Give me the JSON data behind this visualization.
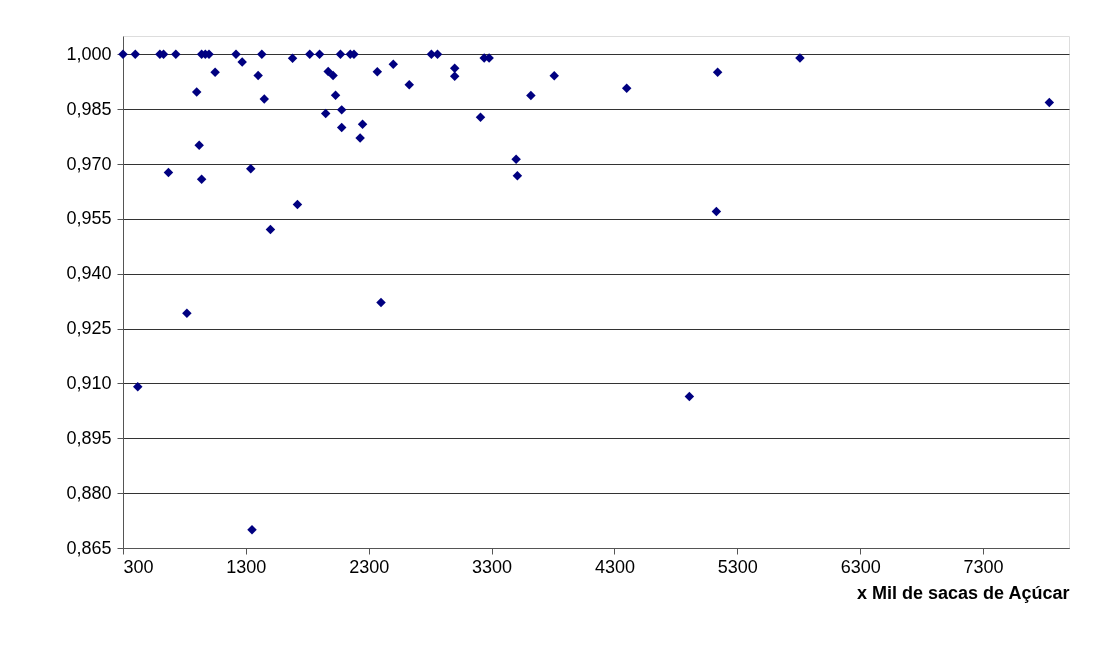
{
  "chart_data": {
    "type": "scatter",
    "xlabel": "x Mil de sacas de Açúcar",
    "marker": "diamond",
    "grid": "y",
    "xlim": [
      300,
      8000
    ],
    "xticks": [
      300,
      1300,
      2300,
      3300,
      4300,
      5300,
      6300,
      7300
    ],
    "ylim": [
      0.865,
      1.005
    ],
    "yticks": [
      {
        "value": 0.865,
        "label": "0,865"
      },
      {
        "value": 0.88,
        "label": "0,880"
      },
      {
        "value": 0.895,
        "label": "0,895"
      },
      {
        "value": 0.91,
        "label": "0,910"
      },
      {
        "value": 0.925,
        "label": "0,925"
      },
      {
        "value": 0.94,
        "label": "0,940"
      },
      {
        "value": 0.955,
        "label": "0,955"
      },
      {
        "value": 0.97,
        "label": "0,970"
      },
      {
        "value": 0.985,
        "label": "0,985"
      },
      {
        "value": 1.0,
        "label": "1,000"
      }
    ],
    "series": [
      {
        "color": "#000080",
        "x": [
          300,
          400,
          600,
          630,
          730,
          940,
          970,
          1000,
          900,
          1050,
          920,
          670,
          940,
          1220,
          1270,
          1430,
          1400,
          1450,
          1340,
          1720,
          1500,
          1680,
          1820,
          1900,
          1970,
          2010,
          2030,
          1950,
          2080,
          2080,
          2250,
          2230,
          2070,
          2150,
          2180,
          2370,
          2500,
          2630,
          2810,
          2860,
          3000,
          3000,
          3240,
          3280,
          3210,
          3620,
          3810,
          3500,
          3510,
          4400,
          5140,
          5130,
          5810,
          7840,
          420,
          820,
          2400,
          1350,
          4910
        ],
        "values": [
          1.0,
          1.0,
          1.0,
          1.0,
          1.0,
          1.0,
          1.0,
          1.0,
          0.9897,
          0.9951,
          0.9751,
          0.9677,
          0.9658,
          1.0,
          0.9979,
          1.0,
          0.9942,
          0.9878,
          0.9687,
          0.9589,
          0.9521,
          0.9989,
          1.0,
          1.0,
          0.9953,
          0.9942,
          0.9888,
          0.9838,
          0.9848,
          0.98,
          0.9809,
          0.9771,
          1.0,
          1.0,
          1.0,
          0.9952,
          0.9973,
          0.9917,
          1.0,
          1.0,
          0.9962,
          0.994,
          0.999,
          0.999,
          0.9828,
          0.9887,
          0.9941,
          0.9713,
          0.9668,
          0.9907,
          0.9951,
          0.957,
          0.999,
          0.9868,
          0.9091,
          0.9292,
          0.9321,
          0.87,
          0.9064
        ]
      }
    ]
  }
}
